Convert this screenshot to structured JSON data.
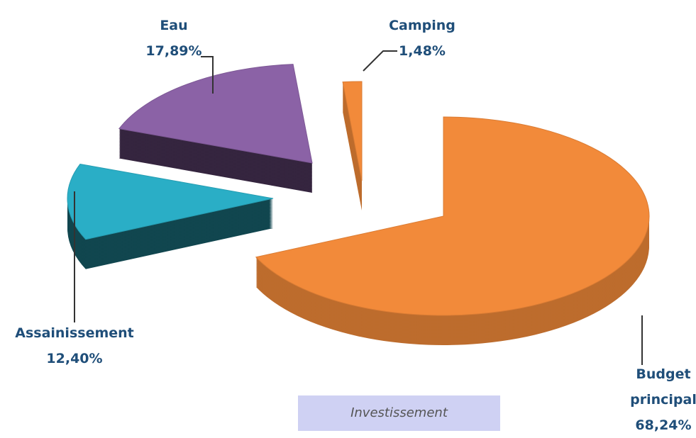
{
  "chart_data": {
    "type": "pie3d",
    "categories": [
      "Budget principal",
      "Assainissement",
      "Eau",
      "Camping"
    ],
    "values": [
      68.24,
      12.4,
      17.89,
      1.48
    ],
    "value_labels": [
      "68,24%",
      "12,40%",
      "17,89%",
      "1,48%"
    ],
    "colors": [
      "#f28a3a",
      "#2aaec6",
      "#8b62a6",
      "#f28a3a"
    ],
    "caption": "Investissement"
  }
}
